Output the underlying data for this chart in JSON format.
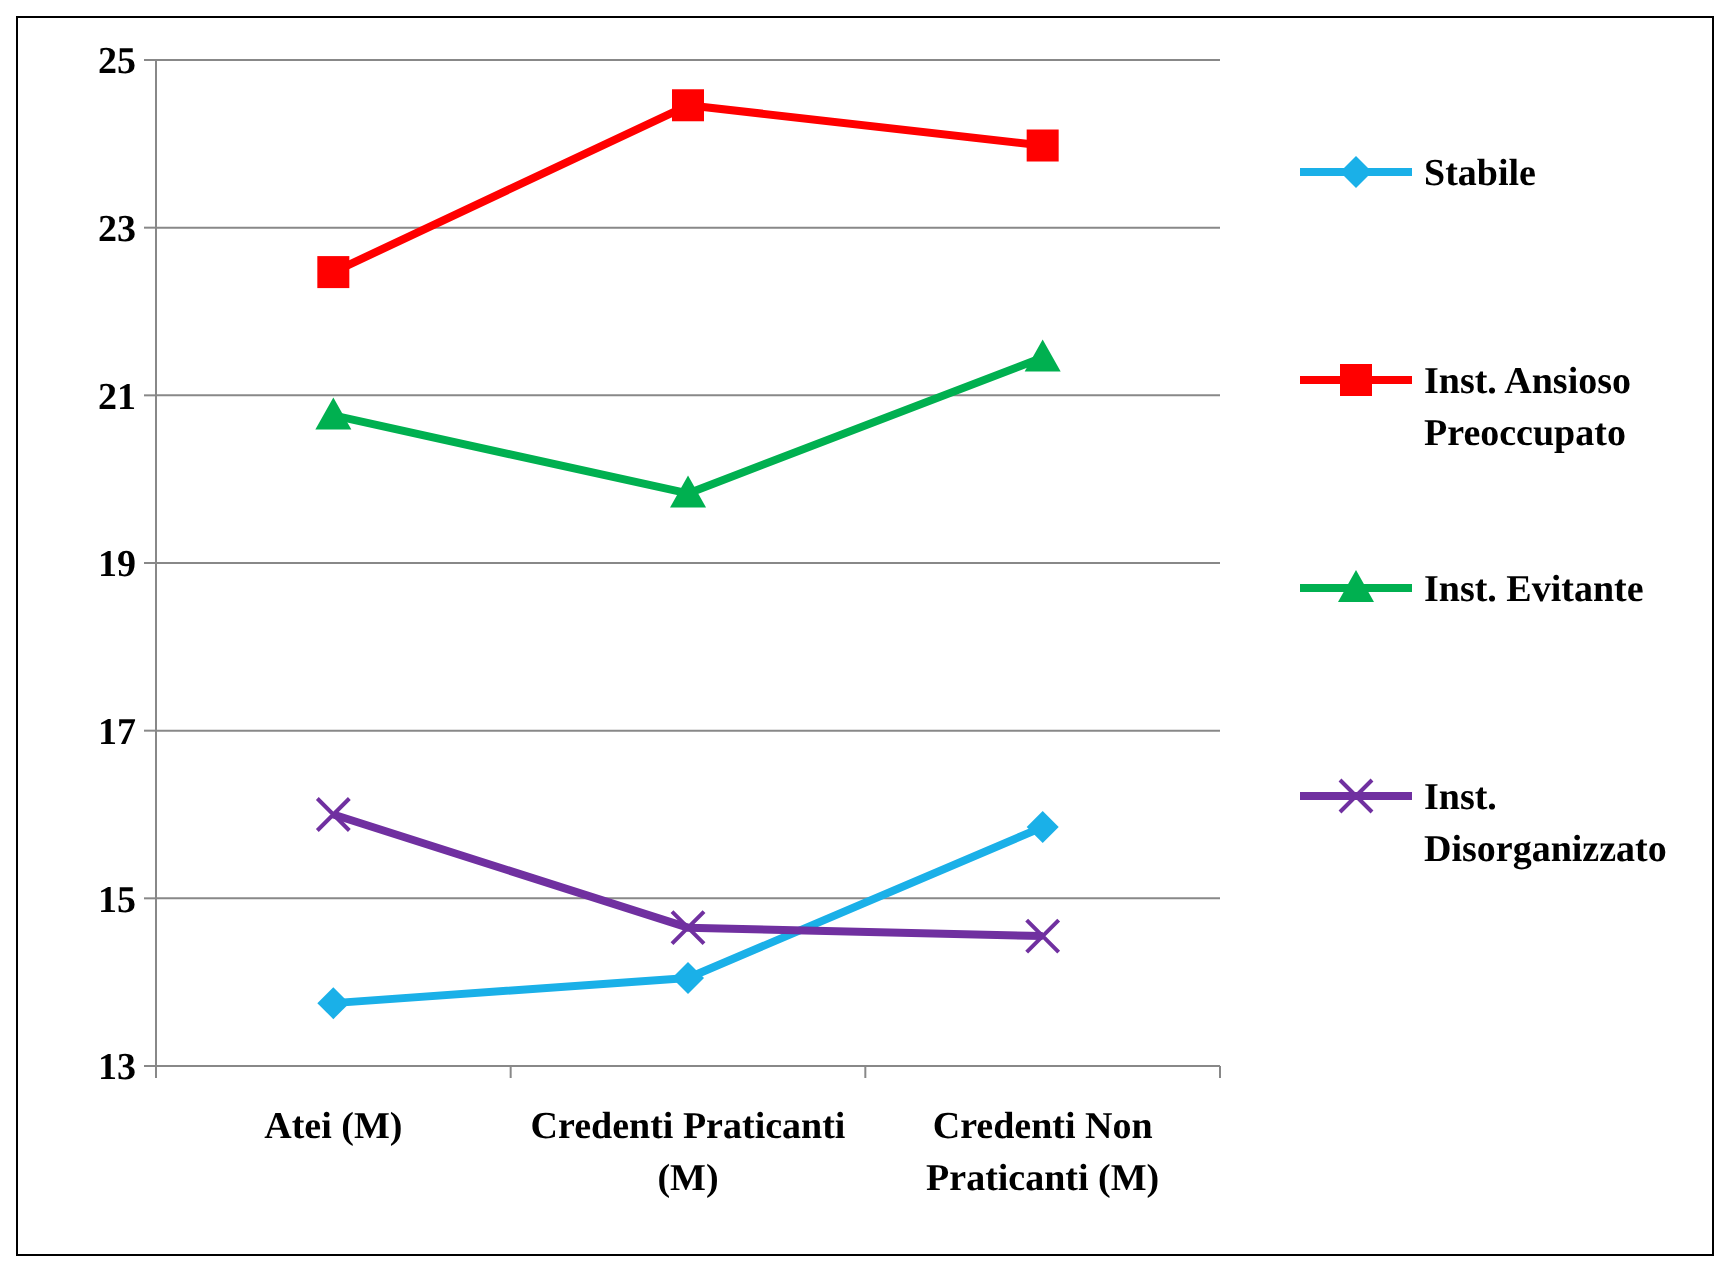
{
  "chart_data": {
    "type": "line",
    "categories": [
      "Atei (M)",
      "Credenti Praticanti (M)",
      "Credenti Non Praticanti (M)"
    ],
    "series": [
      {
        "name": "Stabile",
        "color": "#1ab0e8",
        "marker": "diamond",
        "values": [
          13.75,
          14.05,
          15.85
        ]
      },
      {
        "name": "Inst. Ansioso Preoccupato",
        "color": "#ff0000",
        "marker": "square",
        "values": [
          22.47,
          24.46,
          23.98
        ]
      },
      {
        "name": "Inst. Evitante",
        "color": "#00b050",
        "marker": "triangle",
        "values": [
          20.76,
          19.83,
          21.45
        ]
      },
      {
        "name": "Inst. Disorganizzato",
        "color": "#7030a0",
        "marker": "cross",
        "values": [
          16.0,
          14.65,
          14.55
        ]
      }
    ],
    "ylim": [
      13,
      25
    ],
    "yticks": [
      13,
      15,
      17,
      19,
      21,
      23,
      25
    ],
    "grid": "y",
    "legend": "right",
    "line_style": "solid"
  }
}
